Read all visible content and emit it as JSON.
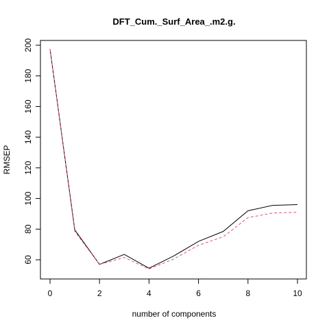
{
  "chart_data": {
    "type": "line",
    "title": "DFT_Cum._Surf_Area_.m2.g.",
    "xlabel": "number of components",
    "ylabel": "RMSEP",
    "xlim": [
      0,
      10
    ],
    "ylim": [
      48,
      203
    ],
    "x_ticks": [
      0,
      2,
      4,
      6,
      8,
      10
    ],
    "y_ticks": [
      60,
      80,
      100,
      120,
      140,
      160,
      180,
      200
    ],
    "grid": false,
    "legend": "none",
    "x": [
      0,
      1,
      2,
      3,
      4,
      5,
      6,
      7,
      8,
      9,
      10
    ],
    "series": [
      {
        "values": [
          197.5,
          79.5,
          57,
          63.5,
          54.5,
          62.5,
          72,
          78.5,
          92,
          95.5,
          96
        ],
        "color": "#000000",
        "dash": "solid"
      },
      {
        "values": [
          197.5,
          78.5,
          57,
          61.5,
          54,
          60.5,
          69.5,
          75,
          87.5,
          90.5,
          91
        ],
        "color": "#df536b",
        "dash": "dashed"
      }
    ]
  }
}
